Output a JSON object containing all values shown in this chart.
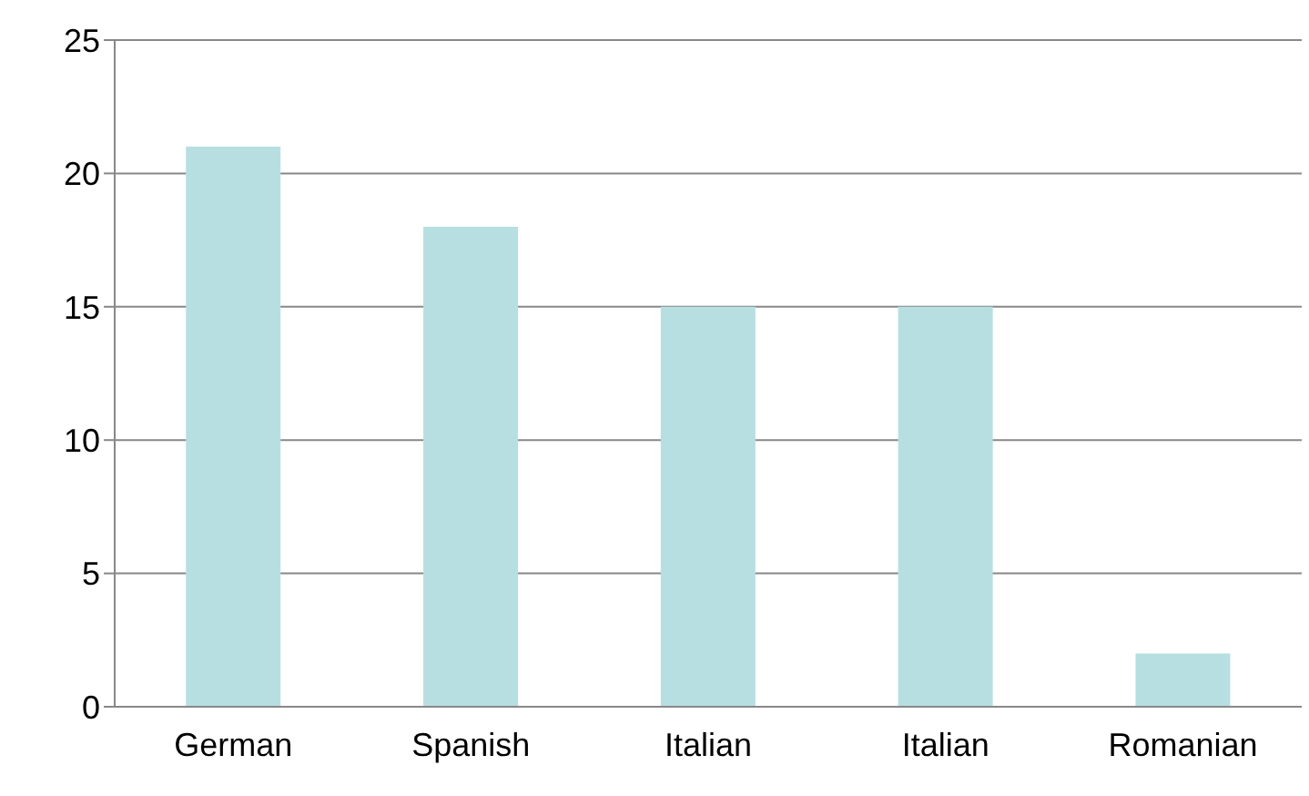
{
  "chart_data": {
    "type": "bar",
    "categories": [
      "German",
      "Spanish",
      "Italian",
      "Italian",
      "Romanian"
    ],
    "values": [
      21,
      18,
      15,
      15,
      2
    ],
    "color": "#b7dfe1",
    "ylim": [
      0,
      25
    ],
    "yticks": [
      0,
      5,
      10,
      15,
      20,
      25
    ],
    "grid": "y"
  }
}
